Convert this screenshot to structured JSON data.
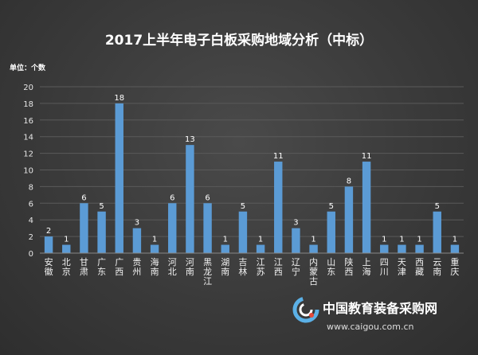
{
  "unit_label": "单位：个数",
  "chart_data": {
    "type": "bar",
    "title": "2017上半年电子白板采购地域分析（中标）",
    "xlabel": "",
    "ylabel": "",
    "ylim": [
      0,
      20
    ],
    "yticks": [
      0,
      2,
      4,
      6,
      8,
      10,
      12,
      14,
      16,
      18,
      20
    ],
    "grid": true,
    "legend": "none",
    "bar_color": "#5b9bd5",
    "categories": [
      "安徽",
      "北京",
      "甘肃",
      "广东",
      "广西",
      "贵州",
      "海南",
      "河北",
      "河南",
      "黑龙江",
      "湖南",
      "吉林",
      "江苏",
      "江西",
      "辽宁",
      "内蒙古",
      "山东",
      "陕西",
      "上海",
      "四川",
      "天津",
      "西藏",
      "云南",
      "重庆"
    ],
    "values": [
      2,
      1,
      6,
      5,
      18,
      3,
      1,
      6,
      13,
      6,
      1,
      5,
      1,
      11,
      3,
      1,
      5,
      8,
      11,
      1,
      1,
      1,
      5,
      1
    ]
  },
  "watermark": {
    "name": "中国教育装备采购网",
    "url": "www.caigou.com.cn"
  }
}
